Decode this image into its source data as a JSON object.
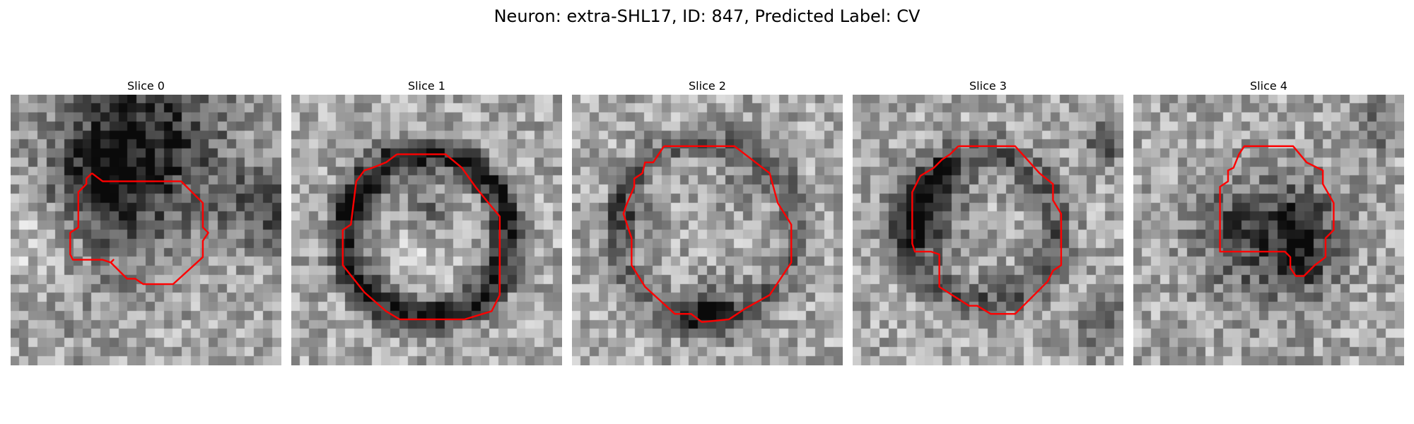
{
  "figure": {
    "title": "Neuron: extra-SHL17, ID: 847, Predicted Label: CV",
    "contour_color": "#ff0000",
    "colormap": "gray"
  },
  "panels": [
    {
      "title": "Slice 0",
      "contour": [
        [
          0.3,
          0.29
        ],
        [
          0.34,
          0.32
        ],
        [
          0.63,
          0.32
        ],
        [
          0.71,
          0.4
        ],
        [
          0.71,
          0.49
        ],
        [
          0.73,
          0.51
        ],
        [
          0.71,
          0.54
        ],
        [
          0.71,
          0.6
        ],
        [
          0.6,
          0.7
        ],
        [
          0.49,
          0.7
        ],
        [
          0.46,
          0.68
        ],
        [
          0.43,
          0.68
        ],
        [
          0.37,
          0.62
        ],
        [
          0.38,
          0.61
        ],
        [
          0.37,
          0.62
        ],
        [
          0.34,
          0.61
        ],
        [
          0.31,
          0.61
        ],
        [
          0.23,
          0.61
        ],
        [
          0.22,
          0.59
        ],
        [
          0.22,
          0.51
        ],
        [
          0.25,
          0.49
        ],
        [
          0.25,
          0.36
        ],
        [
          0.28,
          0.33
        ],
        [
          0.28,
          0.31
        ],
        [
          0.3,
          0.29
        ]
      ],
      "seed": 17,
      "blobs": [
        [
          0.48,
          0.18,
          0.22,
          -0.55
        ],
        [
          0.33,
          0.33,
          0.1,
          -0.3
        ],
        [
          0.93,
          0.42,
          0.1,
          -0.35
        ],
        [
          0.42,
          0.52,
          0.12,
          -0.12
        ],
        [
          0.08,
          0.55,
          0.1,
          0.12
        ],
        [
          0.3,
          0.8,
          0.14,
          -0.06
        ]
      ]
    },
    {
      "title": "Slice 1",
      "contour": [
        [
          0.39,
          0.22
        ],
        [
          0.57,
          0.22
        ],
        [
          0.63,
          0.27
        ],
        [
          0.68,
          0.34
        ],
        [
          0.72,
          0.39
        ],
        [
          0.77,
          0.45
        ],
        [
          0.77,
          0.74
        ],
        [
          0.74,
          0.8
        ],
        [
          0.64,
          0.83
        ],
        [
          0.4,
          0.83
        ],
        [
          0.35,
          0.8
        ],
        [
          0.27,
          0.73
        ],
        [
          0.19,
          0.63
        ],
        [
          0.19,
          0.5
        ],
        [
          0.22,
          0.48
        ],
        [
          0.24,
          0.32
        ],
        [
          0.27,
          0.28
        ],
        [
          0.3,
          0.27
        ],
        [
          0.35,
          0.25
        ],
        [
          0.39,
          0.22
        ]
      ],
      "seed": 29,
      "ring": [
        0.5,
        0.52,
        0.3,
        0.045,
        -0.55
      ],
      "blobs": [
        [
          0.52,
          0.44,
          0.06,
          -0.25
        ],
        [
          0.47,
          0.6,
          0.1,
          0.12
        ],
        [
          0.3,
          0.4,
          0.06,
          -0.12
        ]
      ]
    },
    {
      "title": "Slice 2",
      "contour": [
        [
          0.34,
          0.19
        ],
        [
          0.6,
          0.19
        ],
        [
          0.73,
          0.29
        ],
        [
          0.76,
          0.4
        ],
        [
          0.81,
          0.48
        ],
        [
          0.81,
          0.62
        ],
        [
          0.73,
          0.74
        ],
        [
          0.64,
          0.79
        ],
        [
          0.58,
          0.83
        ],
        [
          0.48,
          0.84
        ],
        [
          0.44,
          0.81
        ],
        [
          0.38,
          0.81
        ],
        [
          0.27,
          0.71
        ],
        [
          0.22,
          0.63
        ],
        [
          0.22,
          0.53
        ],
        [
          0.19,
          0.44
        ],
        [
          0.2,
          0.41
        ],
        [
          0.23,
          0.34
        ],
        [
          0.23,
          0.31
        ],
        [
          0.26,
          0.29
        ],
        [
          0.27,
          0.25
        ],
        [
          0.3,
          0.25
        ],
        [
          0.34,
          0.19
        ]
      ],
      "seed": 41,
      "ring": [
        0.5,
        0.5,
        0.33,
        0.04,
        -0.28
      ],
      "blobs": [
        [
          0.52,
          0.8,
          0.07,
          -0.45
        ],
        [
          0.62,
          0.33,
          0.06,
          -0.2
        ],
        [
          0.22,
          0.45,
          0.05,
          -0.25
        ]
      ]
    },
    {
      "title": "Slice 3",
      "contour": [
        [
          0.39,
          0.19
        ],
        [
          0.6,
          0.19
        ],
        [
          0.69,
          0.29
        ],
        [
          0.74,
          0.33
        ],
        [
          0.74,
          0.39
        ],
        [
          0.77,
          0.44
        ],
        [
          0.77,
          0.63
        ],
        [
          0.74,
          0.65
        ],
        [
          0.72,
          0.69
        ],
        [
          0.65,
          0.76
        ],
        [
          0.6,
          0.81
        ],
        [
          0.51,
          0.81
        ],
        [
          0.46,
          0.78
        ],
        [
          0.43,
          0.78
        ],
        [
          0.32,
          0.71
        ],
        [
          0.32,
          0.59
        ],
        [
          0.29,
          0.58
        ],
        [
          0.23,
          0.58
        ],
        [
          0.22,
          0.55
        ],
        [
          0.22,
          0.36
        ],
        [
          0.25,
          0.3
        ],
        [
          0.3,
          0.27
        ],
        [
          0.33,
          0.24
        ],
        [
          0.36,
          0.22
        ],
        [
          0.39,
          0.19
        ]
      ],
      "seed": 53,
      "ring": [
        0.48,
        0.49,
        0.27,
        0.05,
        -0.3
      ],
      "blobs": [
        [
          0.26,
          0.45,
          0.09,
          -0.4
        ],
        [
          0.37,
          0.3,
          0.06,
          -0.25
        ],
        [
          0.93,
          0.18,
          0.05,
          -0.4
        ],
        [
          0.92,
          0.85,
          0.07,
          -0.25
        ]
      ]
    },
    {
      "title": "Slice 4",
      "contour": [
        [
          0.39,
          0.22
        ],
        [
          0.41,
          0.19
        ],
        [
          0.59,
          0.19
        ],
        [
          0.64,
          0.25
        ],
        [
          0.7,
          0.28
        ],
        [
          0.7,
          0.33
        ],
        [
          0.74,
          0.4
        ],
        [
          0.74,
          0.5
        ],
        [
          0.71,
          0.53
        ],
        [
          0.71,
          0.6
        ],
        [
          0.67,
          0.63
        ],
        [
          0.63,
          0.67
        ],
        [
          0.6,
          0.67
        ],
        [
          0.58,
          0.64
        ],
        [
          0.58,
          0.6
        ],
        [
          0.56,
          0.58
        ],
        [
          0.32,
          0.58
        ],
        [
          0.32,
          0.34
        ],
        [
          0.35,
          0.32
        ],
        [
          0.35,
          0.28
        ],
        [
          0.37,
          0.27
        ],
        [
          0.39,
          0.22
        ]
      ],
      "seed": 67,
      "blobs": [
        [
          0.5,
          0.55,
          0.18,
          -0.35
        ],
        [
          0.62,
          0.47,
          0.08,
          -0.25
        ],
        [
          0.63,
          0.62,
          0.06,
          -0.3
        ],
        [
          0.35,
          0.48,
          0.07,
          -0.15
        ],
        [
          0.92,
          0.12,
          0.06,
          -0.3
        ]
      ]
    }
  ]
}
